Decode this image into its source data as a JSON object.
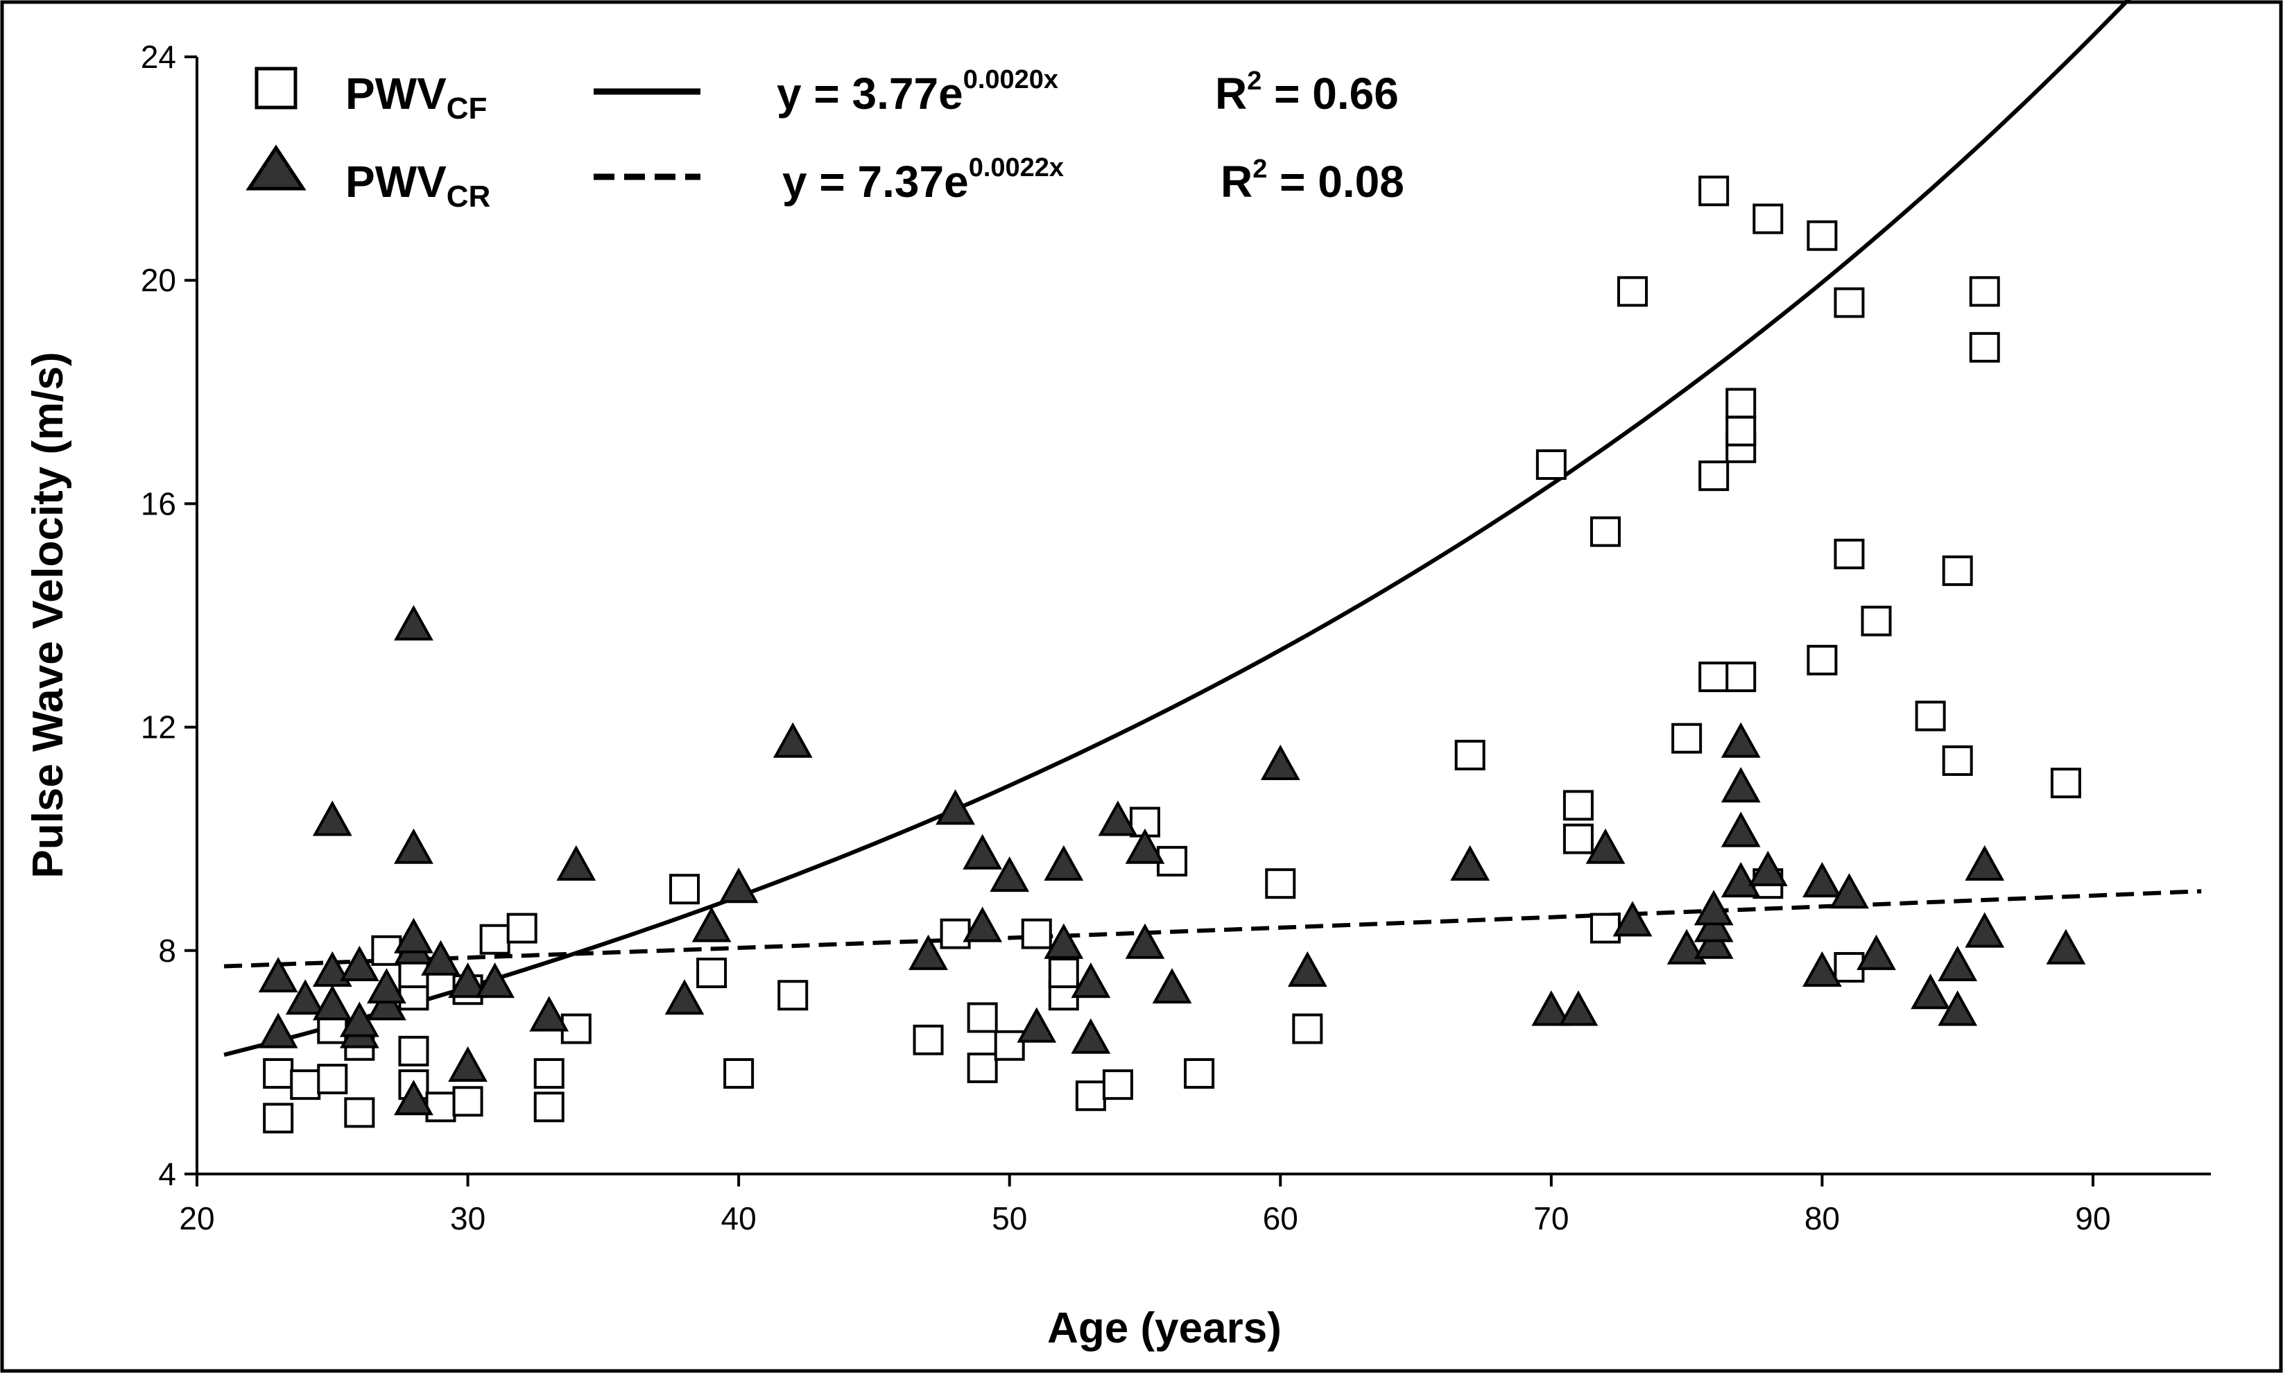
{
  "chart_data": {
    "type": "scatter",
    "title": "",
    "xlabel": "Age  (years)",
    "ylabel": "Pulse Wave Velocity   (m/s)",
    "xlim": [
      20,
      95
    ],
    "ylim": [
      4,
      24
    ],
    "xticks": [
      20,
      30,
      40,
      50,
      60,
      70,
      80,
      90
    ],
    "yticks": [
      4,
      8,
      12,
      16,
      20,
      24
    ],
    "xtick_labels": [
      "20",
      "30",
      "40",
      "50",
      "60",
      "70",
      "80",
      "90"
    ],
    "ytick_labels": [
      "4",
      "8",
      "12",
      "16",
      "20",
      "24"
    ],
    "grid": false,
    "legend_position": "top-left",
    "colors": {
      "marker_fill_cf": "#ffffff",
      "marker_fill_cr": "#333333",
      "stroke": "#000000"
    },
    "series": [
      {
        "name": "PWV",
        "name_sub": "CF",
        "marker": "square",
        "fit": {
          "style": "solid",
          "a": 3.77,
          "b": 0.002,
          "x_range": [
            21,
            94
          ],
          "eq_prefix": "y = 3.77e",
          "eq_exp": "0.0020x",
          "r2_prefix": "R",
          "r2_sup": "2",
          "r2_suffix": " = 0.66"
        },
        "points": [
          [
            23,
            5.0
          ],
          [
            23,
            5.8
          ],
          [
            24,
            5.6
          ],
          [
            25,
            5.7
          ],
          [
            25,
            6.6
          ],
          [
            26,
            5.1
          ],
          [
            26,
            6.3
          ],
          [
            27,
            8.0
          ],
          [
            28,
            5.6
          ],
          [
            28,
            6.2
          ],
          [
            28,
            7.2
          ],
          [
            28,
            7.6
          ],
          [
            29,
            5.2
          ],
          [
            30,
            5.3
          ],
          [
            30,
            7.3
          ],
          [
            31,
            8.2
          ],
          [
            32,
            8.4
          ],
          [
            33,
            5.2
          ],
          [
            33,
            5.8
          ],
          [
            34,
            6.6
          ],
          [
            38,
            9.1
          ],
          [
            39,
            7.6
          ],
          [
            40,
            5.8
          ],
          [
            42,
            7.2
          ],
          [
            47,
            6.4
          ],
          [
            48,
            8.3
          ],
          [
            49,
            5.9
          ],
          [
            49,
            6.8
          ],
          [
            50,
            6.3
          ],
          [
            51,
            8.3
          ],
          [
            52,
            7.2
          ],
          [
            52,
            7.6
          ],
          [
            53,
            5.4
          ],
          [
            54,
            5.6
          ],
          [
            55,
            10.3
          ],
          [
            56,
            9.6
          ],
          [
            57,
            5.8
          ],
          [
            60,
            9.2
          ],
          [
            61,
            6.6
          ],
          [
            67,
            11.5
          ],
          [
            70,
            16.7
          ],
          [
            71,
            10.0
          ],
          [
            71,
            10.6
          ],
          [
            72,
            8.4
          ],
          [
            72,
            15.5
          ],
          [
            73,
            19.8
          ],
          [
            75,
            11.8
          ],
          [
            76,
            12.9
          ],
          [
            76,
            16.5
          ],
          [
            76,
            21.6
          ],
          [
            77,
            12.9
          ],
          [
            77,
            17.0
          ],
          [
            77,
            17.3
          ],
          [
            77,
            17.8
          ],
          [
            78,
            9.2
          ],
          [
            78,
            21.1
          ],
          [
            80,
            13.2
          ],
          [
            80,
            20.8
          ],
          [
            81,
            7.7
          ],
          [
            81,
            15.1
          ],
          [
            81,
            19.6
          ],
          [
            82,
            13.9
          ],
          [
            84,
            12.2
          ],
          [
            85,
            11.4
          ],
          [
            85,
            14.8
          ],
          [
            86,
            18.8
          ],
          [
            86,
            19.8
          ],
          [
            89,
            11.0
          ]
        ]
      },
      {
        "name": "PWV",
        "name_sub": "CR",
        "marker": "triangle",
        "fit": {
          "style": "dashed",
          "a": 7.37,
          "b": 0.0022,
          "x_range": [
            21,
            94
          ],
          "eq_prefix": "y = 7.37e",
          "eq_exp": "0.0022x",
          "r2_prefix": "R",
          "r2_sup": "2",
          "r2_suffix": " = 0.08"
        },
        "points": [
          [
            23,
            6.5
          ],
          [
            23,
            7.5
          ],
          [
            24,
            7.1
          ],
          [
            25,
            7.0
          ],
          [
            25,
            7.6
          ],
          [
            25,
            10.3
          ],
          [
            26,
            6.5
          ],
          [
            26,
            6.7
          ],
          [
            26,
            7.7
          ],
          [
            27,
            7.0
          ],
          [
            27,
            7.3
          ],
          [
            28,
            5.3
          ],
          [
            28,
            8.0
          ],
          [
            28,
            8.2
          ],
          [
            28,
            9.8
          ],
          [
            28,
            13.8
          ],
          [
            29,
            7.8
          ],
          [
            30,
            5.9
          ],
          [
            30,
            7.4
          ],
          [
            31,
            7.4
          ],
          [
            33,
            6.8
          ],
          [
            34,
            9.5
          ],
          [
            38,
            7.1
          ],
          [
            39,
            8.4
          ],
          [
            40,
            9.1
          ],
          [
            42,
            11.7
          ],
          [
            47,
            7.9
          ],
          [
            48,
            10.5
          ],
          [
            49,
            8.4
          ],
          [
            49,
            9.7
          ],
          [
            50,
            9.3
          ],
          [
            51,
            6.6
          ],
          [
            52,
            8.1
          ],
          [
            52,
            9.5
          ],
          [
            53,
            6.4
          ],
          [
            53,
            7.4
          ],
          [
            54,
            10.3
          ],
          [
            55,
            8.1
          ],
          [
            55,
            9.8
          ],
          [
            56,
            7.3
          ],
          [
            60,
            11.3
          ],
          [
            61,
            7.6
          ],
          [
            67,
            9.5
          ],
          [
            70,
            6.9
          ],
          [
            71,
            6.9
          ],
          [
            72,
            9.8
          ],
          [
            73,
            8.5
          ],
          [
            75,
            8.0
          ],
          [
            76,
            8.1
          ],
          [
            76,
            8.4
          ],
          [
            76,
            8.7
          ],
          [
            77,
            9.2
          ],
          [
            77,
            10.1
          ],
          [
            77,
            10.9
          ],
          [
            77,
            11.7
          ],
          [
            78,
            9.4
          ],
          [
            80,
            7.6
          ],
          [
            80,
            9.2
          ],
          [
            81,
            9.0
          ],
          [
            82,
            7.9
          ],
          [
            84,
            7.2
          ],
          [
            85,
            6.9
          ],
          [
            85,
            7.7
          ],
          [
            86,
            8.3
          ],
          [
            86,
            9.5
          ],
          [
            89,
            8.0
          ]
        ]
      }
    ]
  }
}
